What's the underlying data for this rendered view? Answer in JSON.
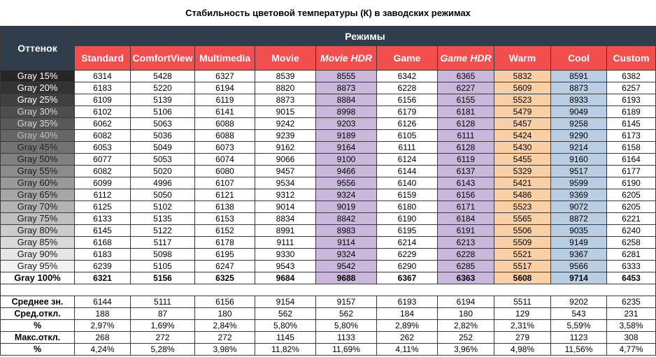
{
  "chart_data": {
    "type": "table",
    "title": "Стабильность цветовой температуры (К) в заводских режимах",
    "row_header": "Оттенок",
    "group_header": "Режимы",
    "columns": [
      {
        "name": "Standard",
        "italic": false,
        "highlight": ""
      },
      {
        "name": "ComfortView",
        "italic": false,
        "highlight": ""
      },
      {
        "name": "Multimedia",
        "italic": false,
        "highlight": ""
      },
      {
        "name": "Movie",
        "italic": false,
        "highlight": ""
      },
      {
        "name": "Movie HDR",
        "italic": true,
        "highlight": "#c9b8dc"
      },
      {
        "name": "Game",
        "italic": false,
        "highlight": ""
      },
      {
        "name": "Game HDR",
        "italic": true,
        "highlight": "#c9b8dc"
      },
      {
        "name": "Warm",
        "italic": false,
        "highlight": "#f9cfa6"
      },
      {
        "name": "Cool",
        "italic": false,
        "highlight": "#b9cde3"
      },
      {
        "name": "Custom",
        "italic": false,
        "highlight": ""
      }
    ],
    "rows": [
      {
        "label": "Gray 15%",
        "shade": "#262626",
        "text_color": "#ffffff",
        "values": [
          "6314",
          "5428",
          "6327",
          "8539",
          "8555",
          "6342",
          "6365",
          "5832",
          "8591",
          "6382"
        ]
      },
      {
        "label": "Gray 20%",
        "shade": "#333333",
        "text_color": "#ffffff",
        "values": [
          "6183",
          "5220",
          "6194",
          "8820",
          "8873",
          "6228",
          "6227",
          "5609",
          "8873",
          "6257"
        ]
      },
      {
        "label": "Gray 25%",
        "shade": "#404040",
        "text_color": "#ffffff",
        "values": [
          "6109",
          "5139",
          "6119",
          "8873",
          "8884",
          "6156",
          "6155",
          "5523",
          "8933",
          "6193"
        ]
      },
      {
        "label": "Gray 30%",
        "shade": "#4d4d4d",
        "text_color": "#d9d9d9",
        "values": [
          "6102",
          "5106",
          "6141",
          "9015",
          "8998",
          "6179",
          "6181",
          "5479",
          "9049",
          "6189"
        ]
      },
      {
        "label": "Gray 35%",
        "shade": "#595959",
        "text_color": "#d9d9d9",
        "values": [
          "6062",
          "5063",
          "6088",
          "9242",
          "9203",
          "6126",
          "6128",
          "5457",
          "9258",
          "6145"
        ]
      },
      {
        "label": "Gray 40%",
        "shade": "#666666",
        "text_color": "#bfbfbf",
        "values": [
          "6082",
          "5036",
          "6088",
          "9239",
          "9189",
          "6105",
          "6111",
          "5424",
          "9290",
          "6173"
        ]
      },
      {
        "label": "Gray 45%",
        "shade": "#737373",
        "text_color": "#262626",
        "values": [
          "6053",
          "5049",
          "6073",
          "9162",
          "9164",
          "6111",
          "6128",
          "5430",
          "9214",
          "6158"
        ]
      },
      {
        "label": "Gray 50%",
        "shade": "#808080",
        "text_color": "#1a1a1a",
        "values": [
          "6077",
          "5053",
          "6074",
          "9066",
          "9100",
          "6124",
          "6119",
          "5455",
          "9160",
          "6164"
        ]
      },
      {
        "label": "Gray 55%",
        "shade": "#8c8c8c",
        "text_color": "#1a1a1a",
        "values": [
          "6082",
          "5020",
          "6080",
          "9457",
          "9466",
          "6144",
          "6137",
          "5329",
          "9517",
          "6177"
        ]
      },
      {
        "label": "Gray 60%",
        "shade": "#999999",
        "text_color": "#1a1a1a",
        "values": [
          "6099",
          "4996",
          "6107",
          "9534",
          "9556",
          "6140",
          "6143",
          "5421",
          "9599",
          "6190"
        ]
      },
      {
        "label": "Gray 65%",
        "shade": "#a6a6a6",
        "text_color": "#1a1a1a",
        "values": [
          "6112",
          "5050",
          "6121",
          "9312",
          "9324",
          "6159",
          "6156",
          "5486",
          "9369",
          "6205"
        ]
      },
      {
        "label": "Gray 70%",
        "shade": "#b3b3b3",
        "text_color": "#1a1a1a",
        "values": [
          "6125",
          "5102",
          "6138",
          "9014",
          "9019",
          "6180",
          "6171",
          "5523",
          "9072",
          "6205"
        ]
      },
      {
        "label": "Gray 75%",
        "shade": "#bfbfbf",
        "text_color": "#1a1a1a",
        "values": [
          "6133",
          "5135",
          "6153",
          "8834",
          "8842",
          "6190",
          "6184",
          "5565",
          "8872",
          "6221"
        ]
      },
      {
        "label": "Gray 80%",
        "shade": "#cccccc",
        "text_color": "#1a1a1a",
        "values": [
          "6145",
          "5122",
          "6152",
          "8991",
          "8983",
          "6195",
          "6191",
          "5506",
          "9035",
          "6240"
        ]
      },
      {
        "label": "Gray 85%",
        "shade": "#d9d9d9",
        "text_color": "#1a1a1a",
        "values": [
          "6168",
          "5117",
          "6178",
          "9111",
          "9114",
          "6214",
          "6213",
          "5509",
          "9149",
          "6258"
        ]
      },
      {
        "label": "Gray 90%",
        "shade": "#e6e6e6",
        "text_color": "#1a1a1a",
        "values": [
          "6183",
          "5098",
          "6195",
          "9330",
          "9324",
          "6229",
          "6228",
          "5521",
          "9367",
          "6281"
        ]
      },
      {
        "label": "Gray 95%",
        "shade": "#f2f2f2",
        "text_color": "#1a1a1a",
        "values": [
          "6239",
          "5105",
          "6247",
          "9543",
          "9542",
          "6290",
          "6285",
          "5517",
          "9566",
          "6333"
        ]
      },
      {
        "label": "Gray 100%",
        "shade": "#ffffff",
        "text_color": "#000000",
        "bold": true,
        "values": [
          "6321",
          "5156",
          "6325",
          "9684",
          "9688",
          "6367",
          "6363",
          "5608",
          "9714",
          "6453"
        ]
      }
    ],
    "stats": [
      {
        "label": "Среднее зн.",
        "values": [
          "6144",
          "5111",
          "6156",
          "9154",
          "9157",
          "6193",
          "6194",
          "5511",
          "9202",
          "6235"
        ]
      },
      {
        "label": "Сред.откл.",
        "values": [
          "188",
          "87",
          "180",
          "562",
          "562",
          "184",
          "180",
          "129",
          "543",
          "231"
        ]
      },
      {
        "label": "%",
        "values": [
          "2,97%",
          "1,69%",
          "2,84%",
          "5,80%",
          "5,80%",
          "2,89%",
          "2,82%",
          "2,31%",
          "5,59%",
          "3,58%"
        ]
      },
      {
        "label": "Макс.откл.",
        "values": [
          "268",
          "272",
          "272",
          "1145",
          "1133",
          "262",
          "252",
          "279",
          "1123",
          "308"
        ]
      },
      {
        "label": "%",
        "values": [
          "4,24%",
          "5,28%",
          "3,98%",
          "11,82%",
          "11,69%",
          "4,11%",
          "3,96%",
          "4,98%",
          "11,56%",
          "4,77%"
        ]
      }
    ]
  }
}
